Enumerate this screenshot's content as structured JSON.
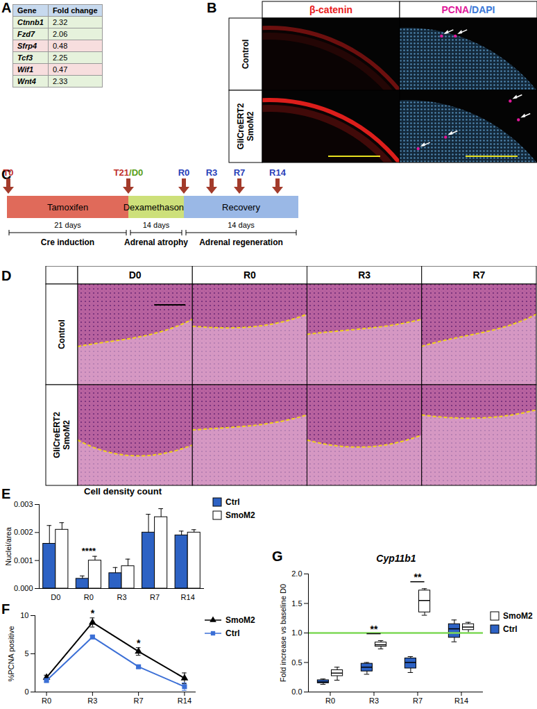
{
  "panel_labels": [
    "A",
    "B",
    "C",
    "D",
    "E",
    "F",
    "G"
  ],
  "table": {
    "header": [
      "Gene",
      "Fold change"
    ],
    "rows": [
      [
        "Ctnnb1",
        2.32
      ],
      [
        "Fzd7",
        2.06
      ],
      [
        "Sfrp4",
        0.48
      ],
      [
        "Tcf3",
        2.25
      ],
      [
        "Wif1",
        0.47
      ],
      [
        "Wnt4",
        2.33
      ]
    ],
    "colors": [
      "#e6f2dc",
      "#e6f2dc",
      "#f7dede",
      "#e6f2dc",
      "#f7dede",
      "#e6f2dc"
    ],
    "header_color": "#c7d9ee"
  },
  "panel_b": {
    "columns": [
      [
        {
          "text": "β-catenin",
          "color": "#e8201c"
        }
      ],
      [
        {
          "text": "PCNA",
          "color": "#e0189a"
        },
        {
          "text": "/DAPI",
          "color": "#3a78d8"
        }
      ]
    ],
    "rows": [
      [
        "Control"
      ],
      [
        "GliCreERT2",
        "SmoM2"
      ]
    ]
  },
  "panel_c": {
    "markers": [
      [
        {
          "text": "T0",
          "color": "#c0302a"
        }
      ],
      [
        {
          "text": "T21",
          "color": "#c0302a"
        },
        {
          "text": "/D0",
          "color": "#5a9e1a"
        }
      ],
      [
        {
          "text": "R0",
          "color": "#2a40b8"
        }
      ],
      [
        {
          "text": "R3",
          "color": "#2a40b8"
        }
      ],
      [
        {
          "text": "R7",
          "color": "#2a40b8"
        }
      ],
      [
        {
          "text": "R14",
          "color": "#2a40b8"
        }
      ]
    ],
    "phases": [
      {
        "name": "Tamoxifen",
        "duration": "21 days",
        "label": "Cre induction",
        "color": "#e06a5a"
      },
      {
        "name": "Dexamethasone",
        "duration": "14 days",
        "label": "Adrenal atrophy",
        "color": "#cde07a"
      },
      {
        "name": "Recovery",
        "duration": "14 days",
        "label": "Adrenal regeneration",
        "color": "#9ab8e6"
      }
    ]
  },
  "panel_d": {
    "columns": [
      "D0",
      "R0",
      "R3",
      "R7"
    ],
    "rows": [
      [
        "Control"
      ],
      [
        "GliCreERT2",
        "SmoM2"
      ]
    ]
  },
  "chart_data": [
    {
      "type": "bar",
      "title": "Cell density count",
      "ylabel": "Nuclei/area",
      "categories": [
        "D0",
        "R0",
        "R3",
        "R7",
        "R14"
      ],
      "series": [
        {
          "name": "Ctrl",
          "color": "#2d62c4",
          "values": [
            0.0016,
            0.00035,
            0.00055,
            0.002,
            0.0019
          ],
          "errors": [
            0.00065,
            0.0001,
            0.0002,
            0.00065,
            0.00015
          ]
        },
        {
          "name": "SmoM2",
          "color": "#ffffff",
          "values": [
            0.0021,
            0.001,
            0.0008,
            0.00255,
            0.002
          ],
          "errors": [
            0.00025,
            0.00015,
            0.00025,
            0.0003,
            0.0001
          ]
        }
      ],
      "ylim": [
        0,
        0.003
      ],
      "yticks": [
        {
          "value": 0,
          "label": "0.000"
        },
        {
          "value": 0.001,
          "label": "0.001"
        },
        {
          "value": 0.002,
          "label": "0.002"
        },
        {
          "value": 0.003,
          "label": "0.003"
        }
      ],
      "annotations": [
        {
          "category": "R0",
          "text": "****"
        }
      ],
      "legend": "right"
    },
    {
      "type": "line",
      "ylabel": "%PCNA positive",
      "categories": [
        "R0",
        "R3",
        "R7",
        "R14"
      ],
      "series": [
        {
          "name": "SmoM2",
          "color": "#000000",
          "marker": "triangle",
          "values": [
            1.9,
            9.1,
            5.3,
            1.8
          ],
          "errors": [
            0.3,
            0.6,
            0.5,
            0.7
          ]
        },
        {
          "name": "Ctrl",
          "color": "#3b6fd6",
          "marker": "square",
          "values": [
            1.5,
            7.2,
            3.3,
            0.7
          ],
          "errors": [
            0.2,
            0.2,
            0.2,
            0.5
          ]
        }
      ],
      "ylim": [
        0,
        10
      ],
      "yticks": [
        0,
        5,
        10
      ],
      "annotations": [
        {
          "category": "R3",
          "text": "*"
        },
        {
          "category": "R7",
          "text": "*"
        }
      ],
      "legend": "right"
    },
    {
      "type": "box",
      "title": "Cyp11b1",
      "ylabel": "Fold increase vs baseline D0",
      "categories": [
        "R0",
        "R3",
        "R7",
        "R14"
      ],
      "series": [
        {
          "name": "SmoM2",
          "color": "#ffffff",
          "boxes": [
            {
              "min": 0.2,
              "q1": 0.27,
              "median": 0.32,
              "q3": 0.37,
              "max": 0.42
            },
            {
              "min": 0.73,
              "q1": 0.77,
              "median": 0.8,
              "q3": 0.84,
              "max": 0.87
            },
            {
              "min": 1.3,
              "q1": 1.35,
              "median": 1.55,
              "q3": 1.72,
              "max": 1.75
            },
            {
              "min": 1.0,
              "q1": 1.05,
              "median": 1.1,
              "q3": 1.15,
              "max": 1.18
            }
          ]
        },
        {
          "name": "Ctrl",
          "color": "#2d62c4",
          "boxes": [
            {
              "min": 0.13,
              "q1": 0.15,
              "median": 0.17,
              "q3": 0.2,
              "max": 0.22
            },
            {
              "min": 0.3,
              "q1": 0.35,
              "median": 0.42,
              "q3": 0.48,
              "max": 0.5
            },
            {
              "min": 0.33,
              "q1": 0.4,
              "median": 0.5,
              "q3": 0.57,
              "max": 0.6
            },
            {
              "min": 0.85,
              "q1": 0.92,
              "median": 1.07,
              "q3": 1.15,
              "max": 1.22
            }
          ]
        }
      ],
      "ylim": [
        0,
        2
      ],
      "yticks": [
        {
          "value": 0,
          "label": "0.0"
        },
        {
          "value": 0.5,
          "label": "0.5"
        },
        {
          "value": 1,
          "label": "1.0"
        },
        {
          "value": 1.5,
          "label": "1.5"
        },
        {
          "value": 2,
          "label": "2.0"
        }
      ],
      "reference_line": {
        "value": 1,
        "color": "#7ed957"
      },
      "annotations": [
        {
          "category": "R3",
          "text": "**"
        },
        {
          "category": "R7",
          "text": "**"
        }
      ],
      "legend": "right"
    }
  ]
}
